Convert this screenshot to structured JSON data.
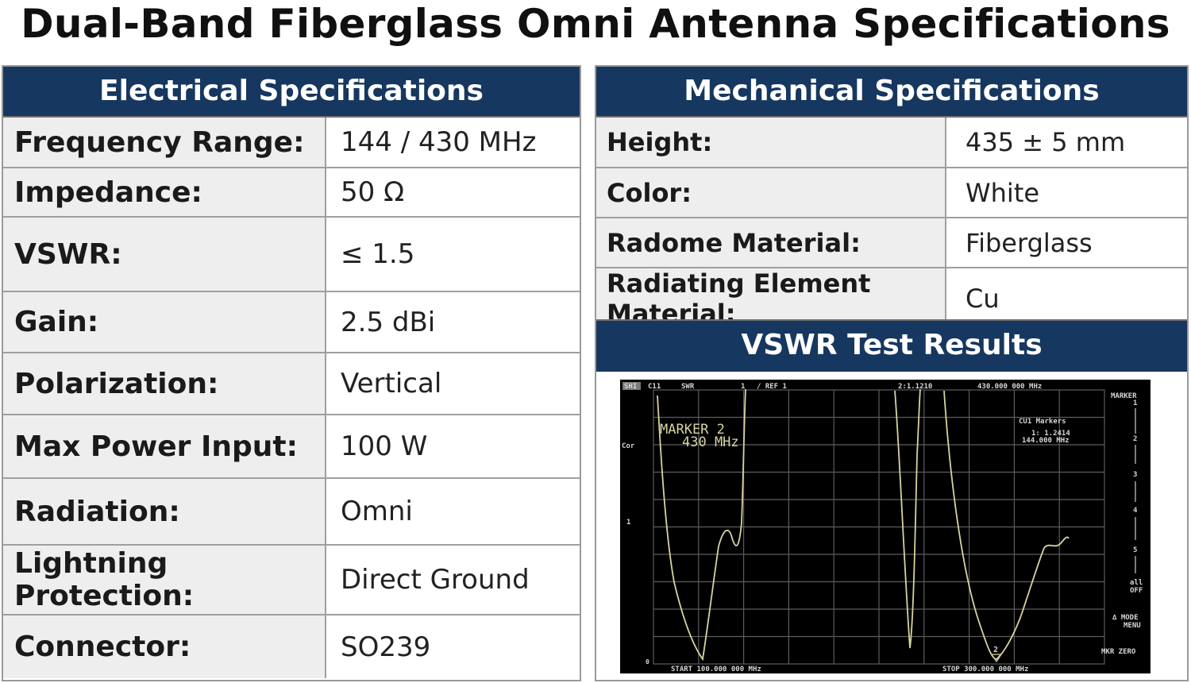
{
  "title": "Dual-Band Fiberglass Omni Antenna Specifications",
  "electrical": {
    "header": "Electrical Specifications",
    "rows": [
      {
        "label": "Frequency Range:",
        "value": "144 / 430 MHz"
      },
      {
        "label": "Impedance:",
        "value": "50 Ω"
      },
      {
        "label": "VSWR:",
        "value": "≤ 1.5"
      },
      {
        "label": "Gain:",
        "value": "2.5 dBi"
      },
      {
        "label": "Polarization:",
        "value": "Vertical"
      },
      {
        "label": "Max Power Input:",
        "value": "100 W"
      },
      {
        "label": "Radiation:",
        "value": "Omni"
      },
      {
        "label": "Lightning Protection:",
        "value": "Direct Ground"
      },
      {
        "label": "Connector:",
        "value": "SO239"
      }
    ]
  },
  "mechanical": {
    "header": "Mechanical Specifications",
    "rows": [
      {
        "label": "Height:",
        "value": "435 ± 5 mm"
      },
      {
        "label": "Color:",
        "value": "White"
      },
      {
        "label": "Radome Material:",
        "value": "Fiberglass"
      },
      {
        "label": "Radiating Element Material:",
        "value": "Cu"
      }
    ]
  },
  "vswr_test": {
    "header": "VSWR Test Results",
    "scope": {
      "top_bar": {
        "mode": "SHI",
        "channel": "C11",
        "format": "SWR",
        "scale": "1",
        "ref": "/ REF 1",
        "marker_readout": "2:1.1210",
        "marker_freq": "430.000 000 MHz"
      },
      "left_labels": {
        "cor": "Cor",
        "ref_marker": "1",
        "zero": "0"
      },
      "marker_note": [
        "MARKER 2",
        "430 MHz"
      ],
      "cu1_markers": {
        "title": "CU1 Markers",
        "line1": "1: 1.2414",
        "line2": "144.000 MHz"
      },
      "marker_2_label": "2",
      "softkeys": {
        "title_1": "MARKER",
        "title_2": "1",
        "items": [
          "2",
          "3",
          "4",
          "5"
        ],
        "all_off_1": "all",
        "all_off_2": "OFF",
        "mode_menu_1": "∆ MODE",
        "mode_menu_2": "MENU",
        "mkr_zero": "MKR ZERO"
      },
      "start": "START 100.000 000 MHz",
      "stop": "STOP 300.000 000 MHz"
    }
  }
}
